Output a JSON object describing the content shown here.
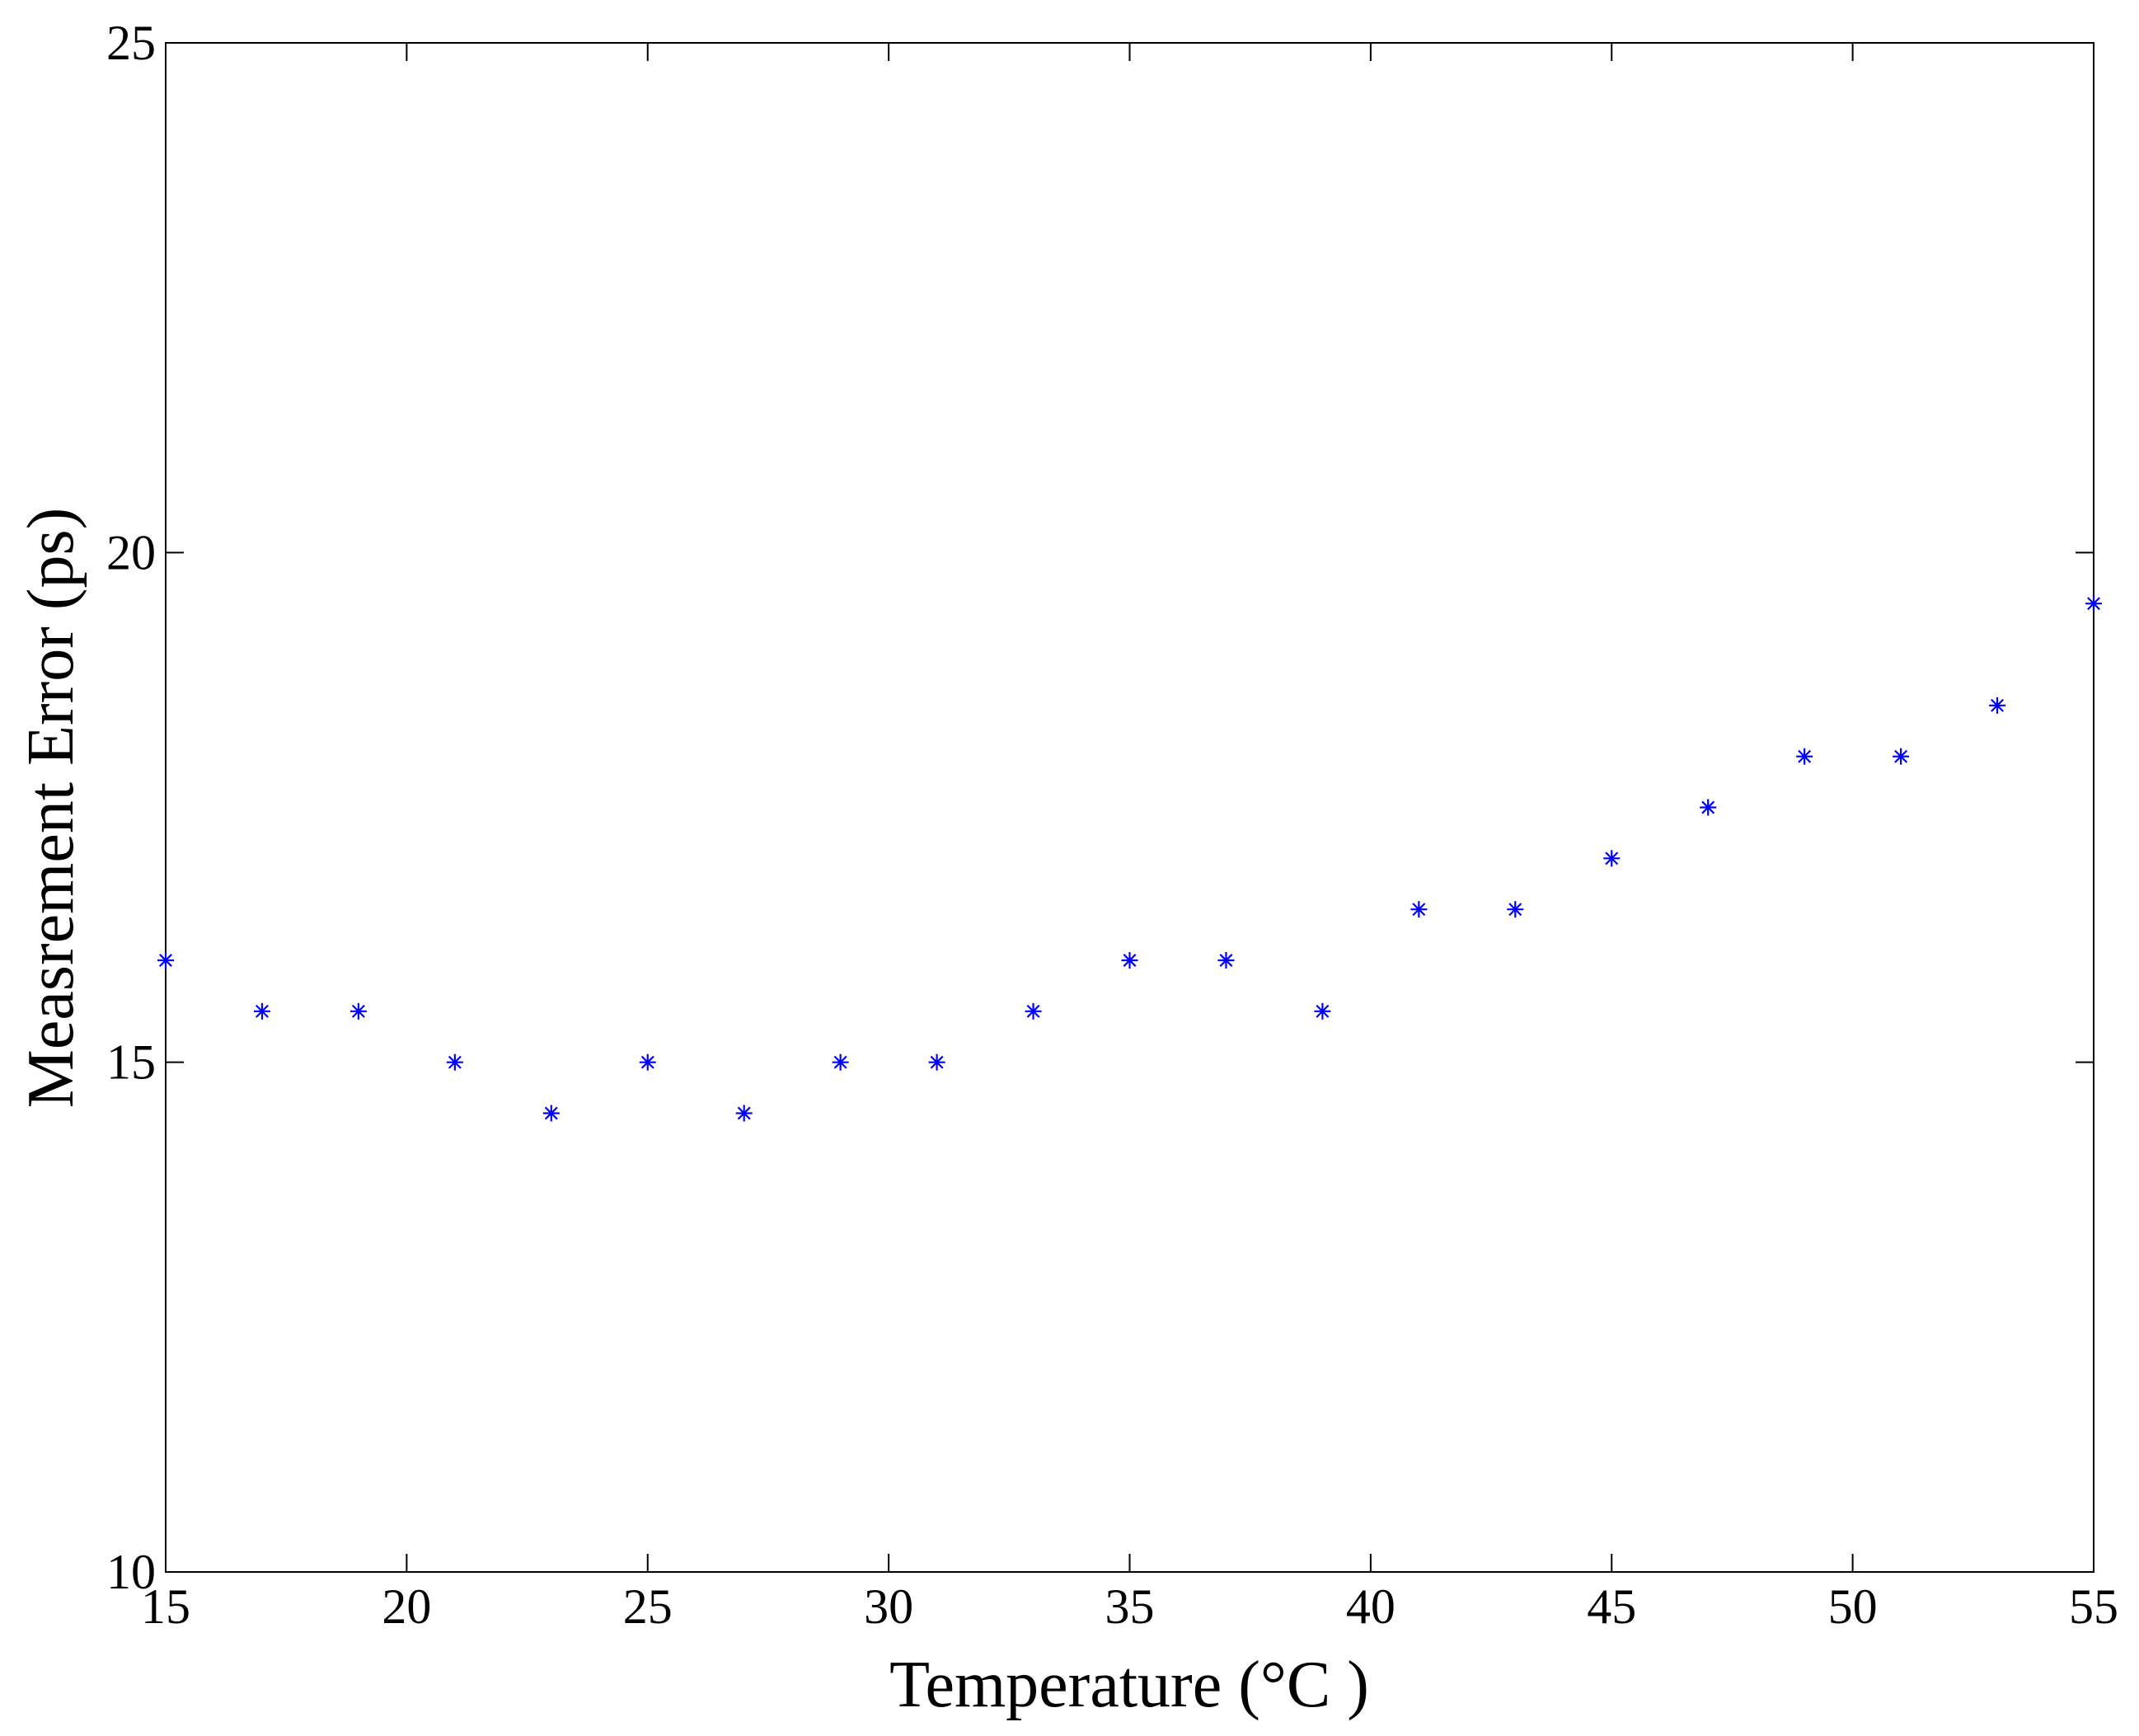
{
  "chart_data": {
    "type": "scatter",
    "title": "",
    "xlabel": "Temperature (°C )",
    "ylabel": "Measrement Error (ps)",
    "xlim": [
      15,
      55
    ],
    "ylim": [
      10,
      25
    ],
    "xticks": [
      15,
      20,
      25,
      30,
      35,
      40,
      45,
      50,
      55
    ],
    "yticks": [
      10,
      15,
      20,
      25
    ],
    "xtick_labels": [
      "15",
      "20",
      "25",
      "30",
      "35",
      "40",
      "45",
      "50",
      "55"
    ],
    "ytick_labels": [
      "10",
      "15",
      "20",
      "25"
    ],
    "grid": false,
    "marker": "asterisk",
    "marker_color": "#0000ff",
    "series": [
      {
        "x": [
          15,
          17,
          19,
          21,
          23,
          25,
          27,
          29,
          31,
          33,
          35,
          37,
          39,
          41,
          43,
          45,
          47,
          49,
          51,
          53,
          55
        ],
        "y": [
          16.0,
          15.5,
          15.5,
          15.0,
          14.5,
          15.0,
          14.5,
          15.0,
          15.0,
          15.5,
          16.0,
          16.0,
          15.5,
          16.5,
          16.5,
          17.0,
          17.5,
          18.0,
          18.0,
          18.5,
          19.5
        ]
      }
    ]
  }
}
